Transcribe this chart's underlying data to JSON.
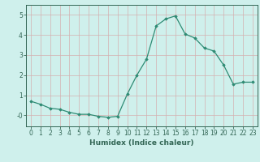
{
  "x": [
    0,
    1,
    2,
    3,
    4,
    5,
    6,
    7,
    8,
    9,
    10,
    11,
    12,
    13,
    14,
    15,
    16,
    17,
    18,
    19,
    20,
    21,
    22,
    23
  ],
  "y": [
    0.7,
    0.55,
    0.35,
    0.3,
    0.15,
    0.05,
    0.05,
    -0.05,
    -0.1,
    -0.05,
    1.05,
    2.0,
    2.8,
    4.45,
    4.8,
    4.95,
    4.05,
    3.85,
    3.35,
    3.2,
    2.5,
    1.55,
    1.65,
    1.65
  ],
  "line_color": "#2e8b74",
  "marker": "D",
  "marker_size": 1.8,
  "line_width": 0.9,
  "bg_color": "#cff0ec",
  "grid_color_major": "#d4b0b0",
  "xlabel": "Humidex (Indice chaleur)",
  "xlim": [
    -0.5,
    23.5
  ],
  "ylim": [
    -0.55,
    5.5
  ],
  "yticks": [
    0,
    1,
    2,
    3,
    4,
    5
  ],
  "ytick_labels": [
    "-0",
    "1",
    "2",
    "3",
    "4",
    "5"
  ],
  "xticks": [
    0,
    1,
    2,
    3,
    4,
    5,
    6,
    7,
    8,
    9,
    10,
    11,
    12,
    13,
    14,
    15,
    16,
    17,
    18,
    19,
    20,
    21,
    22,
    23
  ],
  "axis_color": "#336655",
  "tick_label_color": "#336655",
  "xlabel_color": "#336655",
  "font_size_ticks": 5.5,
  "font_size_xlabel": 6.5
}
